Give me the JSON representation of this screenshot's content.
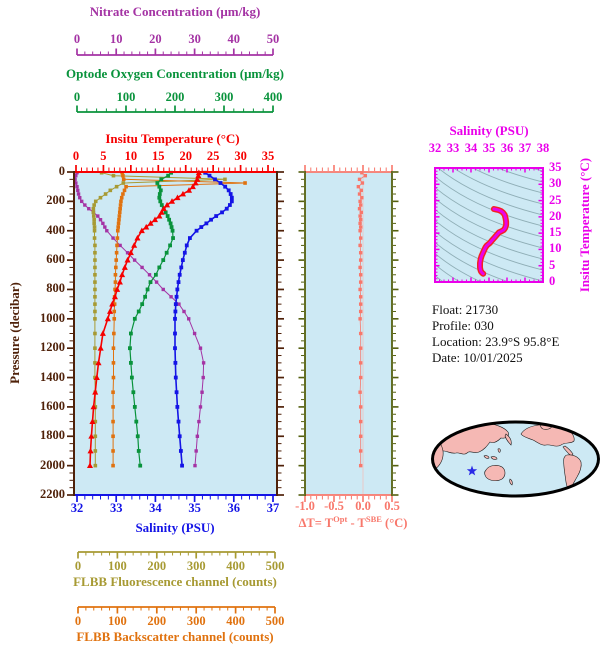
{
  "titles": {
    "nitrate_axis": "Nitrate Concentration (μm/kg)",
    "oxygen_axis": "Optode Oxygen Concentration (μm/kg)",
    "temperature_axis": "Insitu Temperature (°C)",
    "pressure_axis": "Pressure (decibar)",
    "salinity_axis": "Salinity (PSU)",
    "fluorescence_axis": "FLBB Fluorescence channel (counts)",
    "backscatter_axis": "FLBB Backscatter channel (counts)",
    "ts_title": "Salinity (PSU)",
    "ts_ylabel": "Insitu Temperature (°C)",
    "dt_prefix": "ΔT= T",
    "dt_sup1": "Opt",
    "dt_mid": " - T",
    "dt_sup2": "SBE",
    "dt_suffix": " (°C)"
  },
  "info": {
    "lines": [
      "Float:  21730",
      "Profile:  030",
      "Location:  23.9°S  95.8°E",
      "Date:  10/01/2025"
    ]
  },
  "colors": {
    "nitrate": "#A433A4",
    "oxygen": "#09933C",
    "temperature": "#F60000",
    "pressure": "#4F2109",
    "salinity": "#1414E6",
    "fluorescence": "#A79A33",
    "backscatter": "#E0720F",
    "delta_t": "#F8776B",
    "dt_side_axis": "#55600F",
    "ts_magenta": "#EA00EA",
    "ts_inner_red": "#F32222",
    "plot_bg": "#CDE9F4",
    "contour": "#8FAEB6",
    "zero_grid": "#E9C9C9",
    "map_ocean": "#CDE9F4",
    "map_land": "#F5B8B4",
    "map_outline": "#1A1A1A",
    "star": "#2929E6"
  },
  "chart_data": {
    "type": "line",
    "orientation": "profiles vs pressure (depth increases downward)",
    "pressure_grid": [
      5,
      25,
      50,
      75,
      100,
      125,
      150,
      175,
      200,
      225,
      250,
      275,
      300,
      325,
      350,
      375,
      400,
      450,
      500,
      550,
      600,
      650,
      700,
      750,
      800,
      850,
      900,
      950,
      1000,
      1100,
      1200,
      1300,
      1400,
      1500,
      1600,
      1700,
      1800,
      1900,
      2000
    ],
    "axes": {
      "pressure": {
        "label": "Pressure (decibar)",
        "range": [
          0,
          2200
        ],
        "ticks": [
          0,
          200,
          400,
          600,
          800,
          1000,
          1200,
          1400,
          1600,
          1800,
          2000,
          2200
        ]
      },
      "nitrate": {
        "label": "Nitrate Concentration (μm/kg)",
        "range": [
          0,
          50
        ],
        "ticks": [
          0,
          10,
          20,
          30,
          40,
          50
        ]
      },
      "oxygen": {
        "label": "Optode Oxygen Concentration (μm/kg)",
        "range": [
          0,
          400
        ],
        "ticks": [
          0,
          100,
          200,
          300,
          400
        ]
      },
      "temperature": {
        "label": "Insitu Temperature (°C)",
        "range": [
          0,
          35
        ],
        "ticks": [
          0,
          5,
          10,
          15,
          20,
          25,
          30,
          35
        ]
      },
      "salinity": {
        "label": "Salinity (PSU)",
        "range": [
          32,
          37
        ],
        "ticks": [
          32,
          33,
          34,
          35,
          36,
          37
        ]
      },
      "fluorescence": {
        "label": "FLBB Fluorescence channel (counts)",
        "range": [
          0,
          500
        ],
        "ticks": [
          0,
          100,
          200,
          300,
          400,
          500
        ]
      },
      "backscatter": {
        "label": "FLBB Backscatter channel (counts)",
        "range": [
          0,
          500
        ],
        "ticks": [
          0,
          100,
          200,
          300,
          400,
          500
        ]
      },
      "delta_t": {
        "label": "ΔT= TOpt - TSBE (°C)",
        "range": [
          -1.0,
          0.5
        ],
        "ticks": [
          -1.0,
          -0.5,
          0.0,
          0.5
        ],
        "tick_labels": [
          "-1.0",
          "-0.5",
          "0.0",
          "0.5"
        ]
      }
    },
    "series": [
      {
        "name": "temperature",
        "axis": "temperature",
        "values": [
          22.4,
          22.3,
          22.1,
          21.8,
          21.3,
          20.6,
          19.5,
          18.5,
          17.5,
          16.6,
          16.0,
          15.6,
          15.2,
          14.4,
          13.6,
          12.8,
          12.0,
          11.2,
          10.6,
          10.0,
          9.4,
          8.9,
          8.4,
          8.0,
          7.5,
          7.1,
          6.6,
          6.2,
          5.8,
          4.9,
          4.5,
          4.1,
          3.8,
          3.5,
          3.2,
          3.0,
          2.8,
          2.65,
          2.55
        ]
      },
      {
        "name": "salinity",
        "axis": "salinity",
        "values": [
          35.27,
          35.38,
          35.52,
          35.66,
          35.78,
          35.87,
          35.92,
          35.95,
          35.95,
          35.9,
          35.82,
          35.7,
          35.55,
          35.42,
          35.3,
          35.17,
          35.05,
          34.88,
          34.8,
          34.75,
          34.7,
          34.66,
          34.62,
          34.59,
          34.56,
          34.54,
          34.52,
          34.51,
          34.5,
          34.5,
          34.5,
          34.51,
          34.52,
          34.54,
          34.56,
          34.59,
          34.62,
          34.65,
          34.68
        ]
      },
      {
        "name": "oxygen",
        "axis": "oxygen",
        "values": [
          192,
          186,
          172,
          164,
          168,
          171,
          169,
          168,
          170,
          173,
          177,
          181,
          185,
          188,
          191,
          193,
          195,
          196,
          190,
          183,
          176,
          168,
          161,
          150,
          144,
          139,
          133,
          126,
          118,
          110,
          108,
          110,
          112,
          115,
          118,
          121,
          124,
          126,
          129
        ]
      },
      {
        "name": "nitrate",
        "axis": "nitrate",
        "values": [
          0.0,
          -0.3,
          -0.5,
          -0.3,
          0.0,
          0.2,
          0.4,
          0.7,
          1.2,
          2.0,
          3.0,
          4.2,
          5.3,
          6.0,
          6.6,
          7.1,
          7.6,
          9.2,
          11.0,
          12.9,
          14.7,
          16.6,
          18.5,
          20.3,
          22.0,
          24.0,
          26.0,
          27.3,
          28.5,
          30.0,
          31.5,
          32.3,
          32.2,
          31.9,
          31.5,
          31.1,
          30.7,
          30.4,
          30.1
        ]
      },
      {
        "name": "fluorescence",
        "axis": "fluorescence",
        "values": [
          60,
          90,
          373,
          115,
          98,
          82,
          70,
          57,
          45,
          41,
          39,
          39,
          40,
          41,
          41,
          42,
          42,
          42,
          43,
          43,
          43,
          43,
          43,
          43,
          43,
          43,
          43,
          43,
          43,
          43,
          43,
          43,
          43,
          44,
          44,
          44,
          44,
          44,
          44
        ]
      },
      {
        "name": "backscatter",
        "axis": "backscatter",
        "values": [
          112,
          114,
          116,
          424,
          122,
          118,
          114,
          111,
          109,
          108,
          107,
          106,
          105,
          104,
          103,
          102,
          101,
          100,
          99,
          98,
          97,
          96,
          95,
          95,
          94,
          93,
          93,
          92,
          92,
          91,
          90,
          90,
          90,
          89,
          89,
          89,
          89,
          89,
          89
        ]
      },
      {
        "name": "delta_t",
        "axis": "delta_t",
        "values": [
          -0.02,
          0.04,
          -0.06,
          -0.01,
          -0.08,
          -0.03,
          -0.06,
          -0.02,
          -0.05,
          -0.04,
          -0.06,
          -0.03,
          -0.05,
          -0.04,
          -0.05,
          -0.04,
          -0.05,
          -0.04,
          -0.05,
          -0.04,
          -0.04,
          -0.05,
          -0.04,
          -0.04,
          -0.05,
          -0.04,
          -0.04,
          -0.04,
          -0.05,
          -0.04,
          -0.04,
          -0.04,
          -0.04,
          -0.05,
          -0.04,
          -0.04,
          -0.04,
          -0.04,
          -0.04
        ]
      }
    ],
    "ts_diagram": {
      "title": "Salinity (PSU)",
      "ylabel": "Insitu Temperature (°C)",
      "x_range": [
        32,
        38
      ],
      "x_ticks": [
        32,
        33,
        34,
        35,
        36,
        37,
        38
      ],
      "y_range": [
        0,
        35
      ],
      "y_ticks": [
        0,
        5,
        10,
        15,
        20,
        25,
        30,
        35
      ],
      "curve": "salinity series plotted against temperature series",
      "background": "isopycnal-style contour lines"
    }
  },
  "map": {
    "projection": "global ellipse, Pacific-centered",
    "marker": "blue star at float location (23.9S 95.8E, eastern Indian Ocean)"
  }
}
